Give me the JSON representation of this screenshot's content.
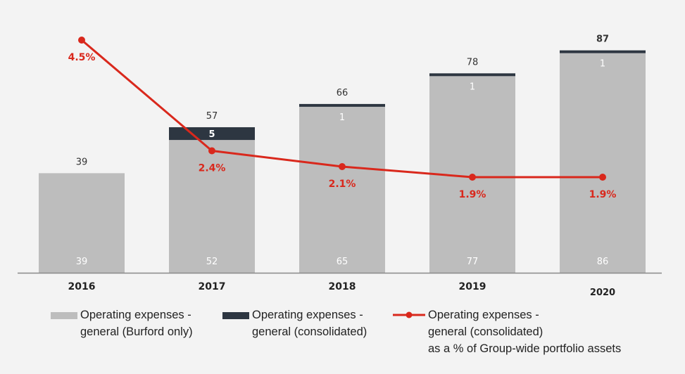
{
  "chart_data": {
    "type": "bar",
    "stacked": true,
    "categories": [
      "2016",
      "2017",
      "2018",
      "2019",
      "2020"
    ],
    "series": [
      {
        "name": "Operating expenses - general (Burford only)",
        "kind": "bar",
        "values": [
          39,
          52,
          65,
          77,
          86
        ]
      },
      {
        "name": "Operating expenses - general (consolidated)",
        "kind": "bar",
        "values": [
          0,
          5,
          1,
          1,
          1
        ]
      },
      {
        "name": "Operating expenses - general (consolidated) as a % of Group-wide portfolio assets",
        "kind": "line",
        "values": [
          4.5,
          2.4,
          2.1,
          1.9,
          1.9
        ]
      }
    ],
    "bar_labels": {
      "base": [
        "39",
        "52",
        "65",
        "77",
        "86"
      ],
      "consolidated": [
        "",
        "5",
        "1",
        "1",
        "1"
      ],
      "totals": [
        "39",
        "57",
        "66",
        "78",
        "87"
      ]
    },
    "line_labels": [
      "4.5%",
      "2.4%",
      "2.1%",
      "1.9%",
      "1.9%"
    ],
    "ylim": [
      0,
      87
    ],
    "line_ylim": [
      1.9,
      4.5
    ],
    "title": "",
    "xlabel": "",
    "ylabel": "",
    "grid": false,
    "legend_position": "bottom"
  },
  "colors": {
    "background": "#f3f3f3",
    "base_bar": "#bdbdbd",
    "consolidated_bar": "#2d3641",
    "line": "#d9281c",
    "axis": "#8a8a8a",
    "label_dark": "#333333",
    "label_light": "#ffffff"
  },
  "legend": [
    {
      "lines": [
        "Operating expenses -",
        "general (Burford only)"
      ]
    },
    {
      "lines": [
        "Operating expenses -",
        "general (consolidated)"
      ]
    },
    {
      "lines": [
        "Operating expenses -",
        "general (consolidated)",
        "as a % of Group-wide portfolio assets"
      ]
    }
  ]
}
